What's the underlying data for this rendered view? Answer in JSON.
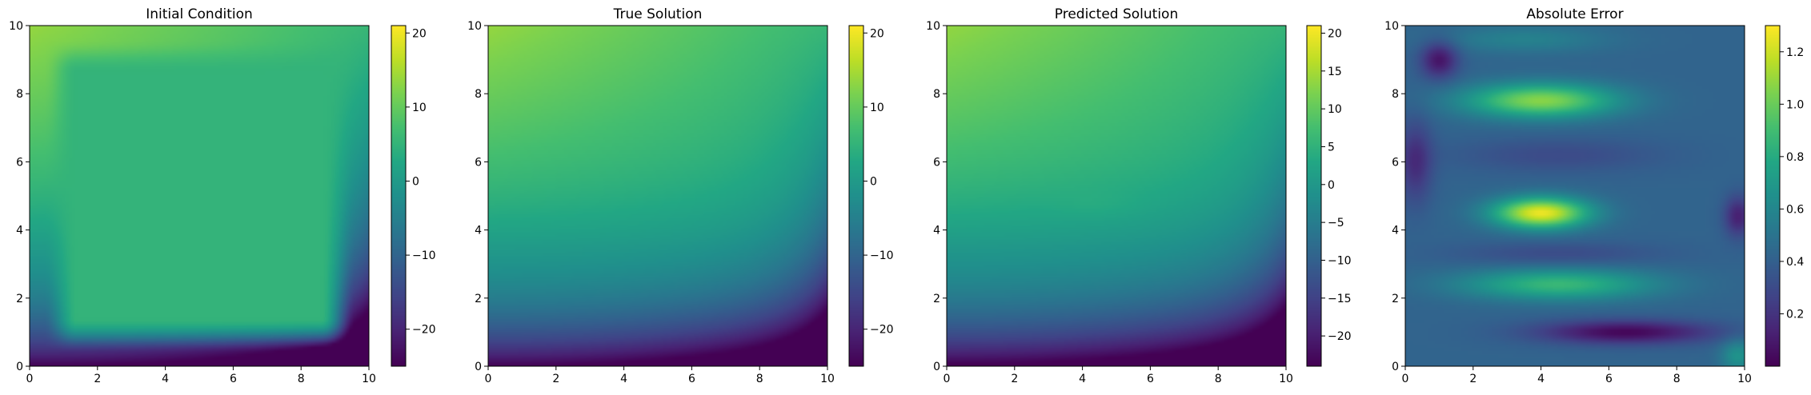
{
  "figure": {
    "panel_count": 4
  },
  "chart_data": [
    {
      "type": "heatmap",
      "title": "Initial Condition",
      "x": {
        "lim": [
          0,
          10
        ],
        "ticks": [
          0,
          2,
          4,
          6,
          8,
          10
        ]
      },
      "y": {
        "lim": [
          0,
          10
        ],
        "ticks": [
          0,
          2,
          4,
          6,
          8,
          10
        ]
      },
      "colorbar": {
        "lim": [
          -25,
          21
        ],
        "ticks": [
          -20,
          -10,
          0,
          10,
          20
        ],
        "tick_labels": [
          "−20",
          "−10",
          "0",
          "10",
          "20"
        ],
        "colormap": "viridis"
      },
      "field": "initial",
      "grid": false
    },
    {
      "type": "heatmap",
      "title": "True Solution",
      "x": {
        "lim": [
          0,
          10
        ],
        "ticks": [
          0,
          2,
          4,
          6,
          8,
          10
        ]
      },
      "y": {
        "lim": [
          0,
          10
        ],
        "ticks": [
          0,
          2,
          4,
          6,
          8,
          10
        ]
      },
      "colorbar": {
        "lim": [
          -25,
          21
        ],
        "ticks": [
          -20,
          -10,
          0,
          10,
          20
        ],
        "tick_labels": [
          "−20",
          "−10",
          "0",
          "10",
          "20"
        ],
        "colormap": "viridis"
      },
      "field": "true",
      "grid": false
    },
    {
      "type": "heatmap",
      "title": "Predicted Solution",
      "x": {
        "lim": [
          0,
          10
        ],
        "ticks": [
          0,
          2,
          4,
          6,
          8,
          10
        ]
      },
      "y": {
        "lim": [
          0,
          10
        ],
        "ticks": [
          0,
          2,
          4,
          6,
          8,
          10
        ]
      },
      "colorbar": {
        "lim": [
          -24,
          21
        ],
        "ticks": [
          -20,
          -15,
          -10,
          -5,
          0,
          5,
          10,
          15,
          20
        ],
        "tick_labels": [
          "−20",
          "−15",
          "−10",
          "−5",
          "0",
          "5",
          "10",
          "15",
          "20"
        ],
        "colormap": "viridis"
      },
      "field": "predicted",
      "grid": false
    },
    {
      "type": "heatmap",
      "title": "Absolute Error",
      "x": {
        "lim": [
          0,
          10
        ],
        "ticks": [
          0,
          2,
          4,
          6,
          8,
          10
        ]
      },
      "y": {
        "lim": [
          0,
          10
        ],
        "ticks": [
          0,
          2,
          4,
          6,
          8,
          10
        ]
      },
      "colorbar": {
        "lim": [
          0,
          1.3
        ],
        "ticks": [
          0.2,
          0.4,
          0.6,
          0.8,
          1.0,
          1.2
        ],
        "tick_labels": [
          "0.2",
          "0.4",
          "0.6",
          "0.8",
          "1.0",
          "1.2"
        ],
        "colormap": "viridis"
      },
      "field": "error",
      "grid": false
    }
  ]
}
